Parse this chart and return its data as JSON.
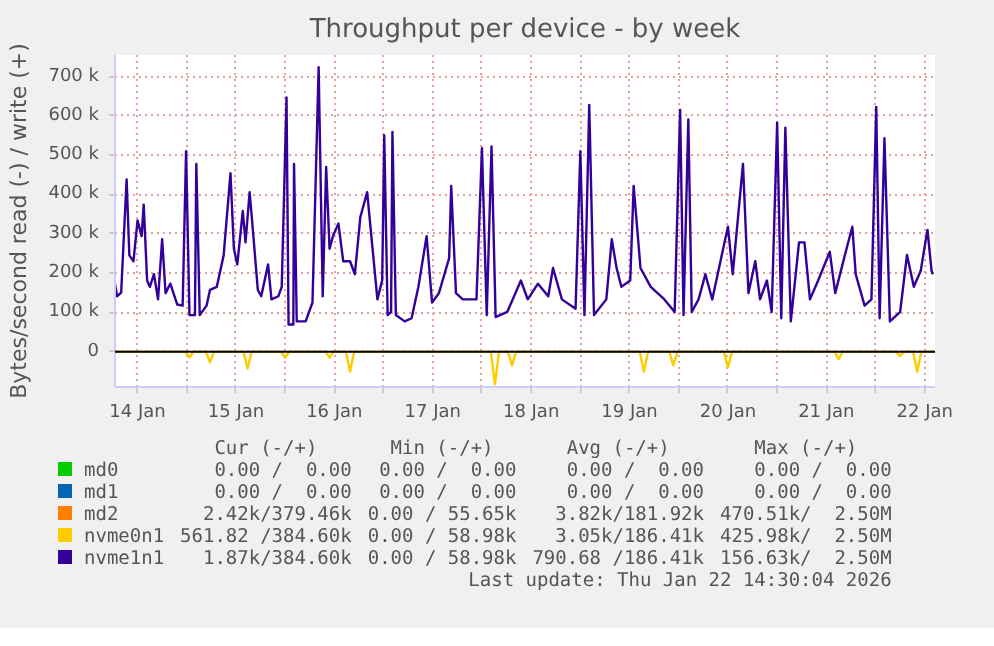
{
  "chart_data": {
    "type": "line",
    "title": "Throughput per device - by week",
    "ylabel": "Bytes/second read (-) / write (+)",
    "xlim": [
      "2026-01-14T06:30",
      "2026-01-22T14:30"
    ],
    "xticks": [
      {
        "value": "2026-01-14T12:00",
        "label": "14 Jan"
      },
      {
        "value": "2026-01-15T00:00",
        "label": null
      },
      {
        "value": "2026-01-15T12:00",
        "label": "15 Jan"
      },
      {
        "value": "2026-01-16T00:00",
        "label": null
      },
      {
        "value": "2026-01-16T12:00",
        "label": "16 Jan"
      },
      {
        "value": "2026-01-17T00:00",
        "label": null
      },
      {
        "value": "2026-01-17T12:00",
        "label": "17 Jan"
      },
      {
        "value": "2026-01-18T00:00",
        "label": null
      },
      {
        "value": "2026-01-18T12:00",
        "label": "18 Jan"
      },
      {
        "value": "2026-01-19T00:00",
        "label": null
      },
      {
        "value": "2026-01-19T12:00",
        "label": "19 Jan"
      },
      {
        "value": "2026-01-20T00:00",
        "label": null
      },
      {
        "value": "2026-01-20T12:00",
        "label": "20 Jan"
      },
      {
        "value": "2026-01-21T00:00",
        "label": null
      },
      {
        "value": "2026-01-21T12:00",
        "label": "21 Jan"
      },
      {
        "value": "2026-01-22T00:00",
        "label": null
      },
      {
        "value": "2026-01-22T12:00",
        "label": "22 Jan"
      }
    ],
    "ylim": [
      -90000,
      755000
    ],
    "yticks": [
      {
        "value": 0,
        "label": "0"
      },
      {
        "value": 100000,
        "label": "100 k"
      },
      {
        "value": 200000,
        "label": "200 k"
      },
      {
        "value": 300000,
        "label": "300 k"
      },
      {
        "value": 400000,
        "label": "400 k"
      },
      {
        "value": 500000,
        "label": "500 k"
      },
      {
        "value": 600000,
        "label": "600 k"
      },
      {
        "value": 700000,
        "label": "700 k"
      }
    ],
    "grid": true,
    "legend": "bottom",
    "series": [
      {
        "name": "md0",
        "color": "#00cc00"
      },
      {
        "name": "md1",
        "color": "#0066b3"
      },
      {
        "name": "md2",
        "color": "#ff8000"
      },
      {
        "name": "nvme0n1",
        "color": "#ffcc00",
        "x": [
          "2026-01-14T06:30",
          "2026-01-14T23:40",
          "2026-01-15T00:40",
          "2026-01-15T01:40",
          "2026-01-15T04:40",
          "2026-01-15T05:40",
          "2026-01-15T06:40",
          "2026-01-15T13:50",
          "2026-01-15T14:50",
          "2026-01-15T15:50",
          "2026-01-15T23:00",
          "2026-01-16T00:00",
          "2026-01-16T01:00",
          "2026-01-16T09:50",
          "2026-01-16T10:50",
          "2026-01-16T11:50",
          "2026-01-16T14:50",
          "2026-01-16T15:50",
          "2026-01-16T16:50",
          "2026-01-18T02:10",
          "2026-01-18T03:10",
          "2026-01-18T04:10",
          "2026-01-18T06:20",
          "2026-01-18T07:20",
          "2026-01-18T08:20",
          "2026-01-19T14:30",
          "2026-01-19T15:30",
          "2026-01-19T16:30",
          "2026-01-19T21:40",
          "2026-01-19T22:40",
          "2026-01-19T23:40",
          "2026-01-20T11:00",
          "2026-01-20T12:00",
          "2026-01-20T13:00",
          "2026-01-21T14:00",
          "2026-01-21T15:00",
          "2026-01-21T16:00",
          "2026-01-22T05:00",
          "2026-01-22T06:00",
          "2026-01-22T07:00",
          "2026-01-22T09:10",
          "2026-01-22T10:10",
          "2026-01-22T11:10",
          "2026-01-22T14:30"
        ],
        "values": [
          0,
          0,
          -15000,
          0,
          0,
          -27000,
          0,
          0,
          -43000,
          0,
          0,
          -15000,
          0,
          0,
          -15000,
          0,
          0,
          -51000,
          0,
          0,
          -83000,
          0,
          0,
          -35000,
          0,
          0,
          -51000,
          0,
          0,
          -35000,
          0,
          0,
          -40000,
          0,
          0,
          -19000,
          0,
          0,
          -11000,
          0,
          0,
          -51000,
          0,
          0
        ]
      },
      {
        "name": "nvme1n1",
        "color": "#330099",
        "x": [
          "2026-01-14T06:30",
          "2026-01-14T07:00",
          "2026-01-14T08:00",
          "2026-01-14T09:20",
          "2026-01-14T10:00",
          "2026-01-14T11:00",
          "2026-01-14T12:00",
          "2026-01-14T13:00",
          "2026-01-14T13:30",
          "2026-01-14T14:20",
          "2026-01-14T15:00",
          "2026-01-14T16:00",
          "2026-01-14T17:00",
          "2026-01-14T18:00",
          "2026-01-14T18:50",
          "2026-01-14T20:00",
          "2026-01-14T21:40",
          "2026-01-14T23:00",
          "2026-01-14T23:50",
          "2026-01-15T00:40",
          "2026-01-15T02:00",
          "2026-01-15T02:20",
          "2026-01-15T03:10",
          "2026-01-15T04:50",
          "2026-01-15T05:40",
          "2026-01-15T07:20",
          "2026-01-15T09:00",
          "2026-01-15T10:40",
          "2026-01-15T11:30",
          "2026-01-15T12:20",
          "2026-01-15T13:40",
          "2026-01-15T14:20",
          "2026-01-15T15:20",
          "2026-01-15T16:00",
          "2026-01-15T17:20",
          "2026-01-15T18:10",
          "2026-01-15T19:50",
          "2026-01-15T20:40",
          "2026-01-15T22:20",
          "2026-01-15T23:10",
          "2026-01-16T00:20",
          "2026-01-16T00:50",
          "2026-01-16T02:00",
          "2026-01-16T02:10",
          "2026-01-16T02:50",
          "2026-01-16T05:00",
          "2026-01-16T06:40",
          "2026-01-16T08:10",
          "2026-01-16T09:10",
          "2026-01-16T10:00",
          "2026-01-16T10:50",
          "2026-01-16T11:40",
          "2026-01-16T13:00",
          "2026-01-16T14:10",
          "2026-01-16T15:50",
          "2026-01-16T17:00",
          "2026-01-16T18:20",
          "2026-01-16T20:00",
          "2026-01-16T22:30",
          "2026-01-16T23:40",
          "2026-01-17T00:10",
          "2026-01-17T01:00",
          "2026-01-17T01:50",
          "2026-01-17T02:10",
          "2026-01-17T03:00",
          "2026-01-17T05:10",
          "2026-01-17T06:50",
          "2026-01-17T08:30",
          "2026-01-17T10:30",
          "2026-01-17T11:50",
          "2026-01-17T13:30",
          "2026-01-17T16:00",
          "2026-01-17T16:30",
          "2026-01-17T17:40",
          "2026-01-17T19:20",
          "2026-01-17T22:40",
          "2026-01-18T00:00",
          "2026-01-18T01:10",
          "2026-01-18T02:20",
          "2026-01-18T03:20",
          "2026-01-18T06:10",
          "2026-01-18T09:30",
          "2026-01-18T11:10",
          "2026-01-18T13:40",
          "2026-01-18T16:10",
          "2026-01-18T17:20",
          "2026-01-18T19:30",
          "2026-01-18T22:50",
          "2026-01-19T00:00",
          "2026-01-19T01:00",
          "2026-01-19T02:10",
          "2026-01-19T03:20",
          "2026-01-19T06:20",
          "2026-01-19T07:40",
          "2026-01-19T08:50",
          "2026-01-19T10:00",
          "2026-01-19T12:10",
          "2026-01-19T13:00",
          "2026-01-19T14:40",
          "2026-01-19T17:10",
          "2026-01-19T20:30",
          "2026-01-19T23:00",
          "2026-01-20T00:20",
          "2026-01-20T01:10",
          "2026-01-20T02:20",
          "2026-01-20T03:10",
          "2026-01-20T04:50",
          "2026-01-20T06:30",
          "2026-01-20T08:10",
          "2026-01-20T10:20",
          "2026-01-20T12:00",
          "2026-01-20T13:10",
          "2026-01-20T15:40",
          "2026-01-20T17:00",
          "2026-01-20T18:40",
          "2026-01-20T19:50",
          "2026-01-20T21:30",
          "2026-01-20T22:40",
          "2026-01-21T00:00",
          "2026-01-21T01:00",
          "2026-01-21T02:00",
          "2026-01-21T03:20",
          "2026-01-21T05:20",
          "2026-01-21T06:40",
          "2026-01-21T08:00",
          "2026-01-21T10:00",
          "2026-01-21T12:50",
          "2026-01-21T14:10",
          "2026-01-21T16:20",
          "2026-01-21T18:20",
          "2026-01-21T19:10",
          "2026-01-21T21:20",
          "2026-01-21T23:00",
          "2026-01-22T00:10",
          "2026-01-22T01:00",
          "2026-01-22T02:10",
          "2026-01-22T03:30",
          "2026-01-22T06:00",
          "2026-01-22T07:40",
          "2026-01-22T09:20",
          "2026-01-22T11:00",
          "2026-01-22T12:40",
          "2026-01-22T13:40",
          "2026-01-22T14:00"
        ],
        "values": [
          173000,
          141000,
          150000,
          438000,
          245000,
          230000,
          334000,
          294000,
          374000,
          181000,
          165000,
          197000,
          133000,
          286000,
          149000,
          173000,
          120000,
          117000,
          510000,
          93000,
          93000,
          478000,
          93000,
          117000,
          157000,
          165000,
          245000,
          454000,
          262000,
          222000,
          358000,
          278000,
          406000,
          326000,
          157000,
          141000,
          222000,
          133000,
          141000,
          165000,
          647000,
          69000,
          69000,
          478000,
          77000,
          77000,
          125000,
          724000,
          141000,
          470000,
          262000,
          294000,
          326000,
          230000,
          230000,
          197000,
          342000,
          406000,
          133000,
          181000,
          551000,
          93000,
          101000,
          559000,
          93000,
          77000,
          85000,
          165000,
          294000,
          125000,
          149000,
          238000,
          422000,
          149000,
          133000,
          133000,
          518000,
          93000,
          522000,
          88000,
          101000,
          181000,
          133000,
          173000,
          141000,
          213000,
          133000,
          109000,
          510000,
          93000,
          628000,
          93000,
          133000,
          286000,
          213000,
          165000,
          181000,
          422000,
          213000,
          165000,
          133000,
          101000,
          615000,
          93000,
          591000,
          101000,
          133000,
          197000,
          133000,
          238000,
          318000,
          197000,
          478000,
          149000,
          230000,
          133000,
          181000,
          101000,
          583000,
          85000,
          570000,
          77000,
          278000,
          278000,
          133000,
          181000,
          254000,
          149000,
          238000,
          318000,
          197000,
          117000,
          133000,
          623000,
          85000,
          543000,
          77000,
          101000,
          246000,
          165000,
          205000,
          310000,
          205000,
          197000
        ]
      }
    ],
    "annotations": [
      "Cur (-/+)",
      "Min (-/+)",
      "Avg (-/+)",
      "Max (-/+)",
      "0.00 /  0.00",
      "0.00 /  0.00",
      "0.00 /  0.00",
      "0.00 /  0.00",
      "0.00 /  0.00",
      "0.00 /  0.00",
      "0.00 /  0.00",
      "0.00 /  0.00",
      "2.42k/379.46k",
      "0.00 / 55.65k",
      "3.82k/181.92k",
      "470.51k/  2.50M",
      "561.82 /384.60k",
      "0.00 / 58.98k",
      "3.05k/186.41k",
      "425.98k/  2.50M",
      "1.87k/384.60k",
      "0.00 / 58.98k",
      "790.68 /186.41k",
      "156.63k/  2.50M",
      "Last update: Thu Jan 22 14:30:04 2026"
    ]
  }
}
